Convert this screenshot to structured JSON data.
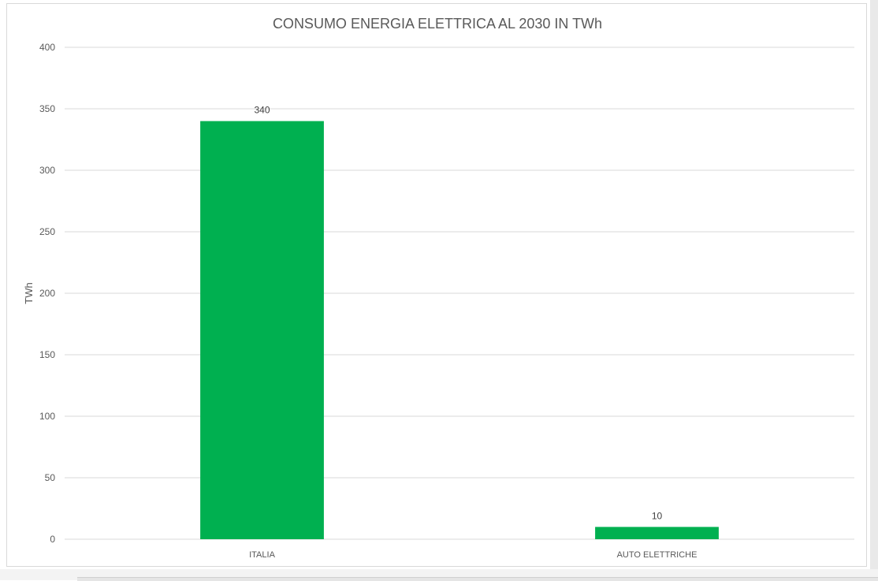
{
  "chart_data": {
    "type": "bar",
    "title": "CONSUMO ENERGIA ELETTRICA AL 2030 IN TWh",
    "xlabel": "",
    "ylabel": "TWh",
    "categories": [
      "ITALIA",
      "AUTO ELETTRICHE"
    ],
    "values": [
      340,
      10
    ],
    "data_labels": [
      "340",
      "10"
    ],
    "ylim": [
      0,
      400
    ],
    "yticks": [
      0,
      50,
      100,
      150,
      200,
      250,
      300,
      350,
      400
    ],
    "ytick_labels": [
      "0",
      "50",
      "100",
      "150",
      "200",
      "250",
      "300",
      "350",
      "400"
    ],
    "grid": true,
    "legend": "none",
    "bar_color": "#00b050"
  }
}
